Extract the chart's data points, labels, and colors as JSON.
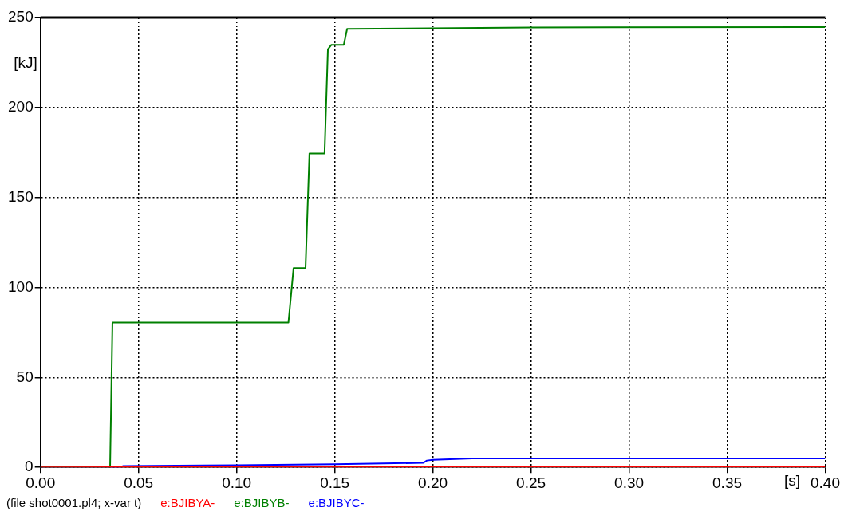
{
  "chart_data": {
    "type": "line",
    "ylabel": "[kJ]",
    "xlabel": "[s]",
    "annotations": [
      "(file shot0001.pl4; x-var t)"
    ],
    "xlim": [
      0,
      0.4
    ],
    "ylim": [
      0,
      250
    ],
    "xticks": [
      {
        "value": 0,
        "label": "0.00"
      },
      {
        "value": 0.05,
        "label": "0.05"
      },
      {
        "value": 0.1,
        "label": "0.10"
      },
      {
        "value": 0.15,
        "label": "0.15"
      },
      {
        "value": 0.2,
        "label": "0.20"
      },
      {
        "value": 0.25,
        "label": "0.25"
      },
      {
        "value": 0.3,
        "label": "0.30"
      },
      {
        "value": 0.35,
        "label": "0.35"
      },
      {
        "value": 0.4,
        "label": "0.40"
      }
    ],
    "yticks": [
      0,
      50,
      100,
      150,
      200,
      250
    ],
    "grid": true,
    "legend": "bottom",
    "marker": "none",
    "line_style": "solid",
    "series": [
      {
        "name": "e:BJIBYA-",
        "color": "#ff0000",
        "x": [
          0,
          0.04,
          0.1,
          0.2,
          0.3,
          0.4
        ],
        "values": [
          0,
          0.1,
          0.2,
          0.3,
          0.3,
          0.3
        ]
      },
      {
        "name": "e:BJIBYB-",
        "color": "#008000",
        "x": [
          0,
          0.0355,
          0.0367,
          0.1264,
          0.129,
          0.1351,
          0.1371,
          0.1448,
          0.1465,
          0.1482,
          0.1546,
          0.1563,
          0.25,
          0.4
        ],
        "values": [
          0,
          0,
          80.5,
          80.5,
          110.7,
          110.7,
          174.5,
          174.5,
          232.3,
          234.8,
          234.8,
          243.7,
          244.5,
          244.7
        ]
      },
      {
        "name": "e:BJIBYC-",
        "color": "#0000ff",
        "x": [
          0,
          0.04,
          0.042,
          0.1,
          0.15,
          0.195,
          0.197,
          0.2,
          0.22,
          0.3,
          0.4
        ],
        "values": [
          0,
          0,
          0.7,
          1.2,
          1.8,
          2.5,
          3.8,
          4.2,
          5,
          5,
          5
        ]
      }
    ]
  }
}
